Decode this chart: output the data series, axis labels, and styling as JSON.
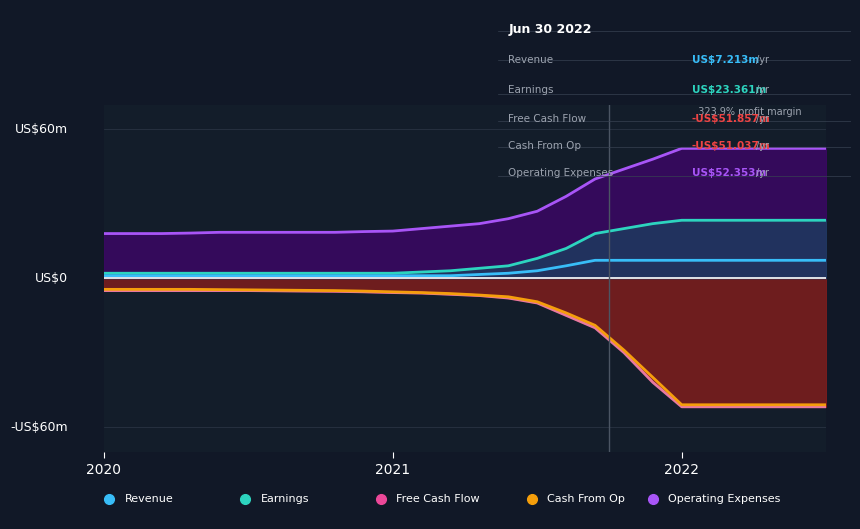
{
  "bg_color": "#111827",
  "chart_bg": "#0f1923",
  "plot_bg": "#131d2a",
  "title": "Jun 30 2022",
  "y_label_top": "US$60m",
  "y_label_zero": "US$0",
  "y_label_bottom": "-US$60m",
  "x_ticks": [
    "2020",
    "2021",
    "2022"
  ],
  "tooltip": {
    "date": "Jun 30 2022",
    "Revenue": {
      "value": "US$7.213m",
      "color": "#38bdf8"
    },
    "Earnings": {
      "value": "US$23.361m",
      "color": "#2dd4bf"
    },
    "profit_margin": "323.9%",
    "Free Cash Flow": {
      "value": "-US$51.857m",
      "color": "#ef4444"
    },
    "Cash From Op": {
      "value": "-US$51.037m",
      "color": "#ef4444"
    },
    "Operating Expenses": {
      "value": "US$52.353m",
      "color": "#a855f7"
    }
  },
  "legend": [
    {
      "label": "Revenue",
      "color": "#38bdf8"
    },
    {
      "label": "Earnings",
      "color": "#2dd4bf"
    },
    {
      "label": "Free Cash Flow",
      "color": "#ec4899"
    },
    {
      "label": "Cash From Op",
      "color": "#f59e0b"
    },
    {
      "label": "Operating Expenses",
      "color": "#a855f7"
    }
  ],
  "series": {
    "x": [
      0,
      0.1,
      0.2,
      0.3,
      0.4,
      0.5,
      0.6,
      0.7,
      0.8,
      0.9,
      1.0,
      1.1,
      1.2,
      1.3,
      1.4,
      1.5,
      1.6,
      1.7,
      1.8,
      1.9,
      2.0,
      2.1,
      2.2,
      2.3,
      2.4,
      2.5
    ],
    "Revenue": [
      1.0,
      1.0,
      1.0,
      1.0,
      1.0,
      1.0,
      1.0,
      1.0,
      1.0,
      1.0,
      1.0,
      1.0,
      1.0,
      1.5,
      2.0,
      3.0,
      5.0,
      7.213,
      7.213,
      7.213,
      7.213,
      7.213,
      7.213,
      7.213,
      7.213,
      7.213
    ],
    "Earnings": [
      2.0,
      2.0,
      2.0,
      2.0,
      2.0,
      2.0,
      2.0,
      2.0,
      2.0,
      2.0,
      2.0,
      2.5,
      3.0,
      4.0,
      5.0,
      8.0,
      12.0,
      18.0,
      20.0,
      22.0,
      23.361,
      23.361,
      23.361,
      23.361,
      23.361,
      23.361
    ],
    "Operating_Expenses": [
      18.0,
      18.0,
      18.0,
      18.2,
      18.5,
      18.5,
      18.5,
      18.5,
      18.5,
      18.8,
      19.0,
      20.0,
      21.0,
      22.0,
      24.0,
      27.0,
      33.0,
      40.0,
      44.0,
      48.0,
      52.353,
      52.353,
      52.353,
      52.353,
      52.353,
      52.353
    ],
    "Free_Cash_Flow": [
      -5.0,
      -5.0,
      -5.0,
      -5.0,
      -5.0,
      -5.0,
      -5.1,
      -5.2,
      -5.3,
      -5.5,
      -5.8,
      -6.0,
      -6.5,
      -7.0,
      -8.0,
      -10.0,
      -15.0,
      -20.0,
      -30.0,
      -42.0,
      -51.857,
      -51.857,
      -51.857,
      -51.857,
      -51.857,
      -51.857
    ],
    "Cash_From_Op": [
      -4.5,
      -4.5,
      -4.5,
      -4.5,
      -4.6,
      -4.7,
      -4.8,
      -4.9,
      -5.0,
      -5.2,
      -5.5,
      -5.8,
      -6.2,
      -6.8,
      -7.5,
      -9.5,
      -14.0,
      -19.0,
      -29.0,
      -40.0,
      -51.037,
      -51.037,
      -51.037,
      -51.037,
      -51.037,
      -51.037
    ]
  },
  "vertical_line_x": 1.75,
  "ylim": [
    -70,
    70
  ],
  "xlim": [
    0,
    2.5
  ]
}
